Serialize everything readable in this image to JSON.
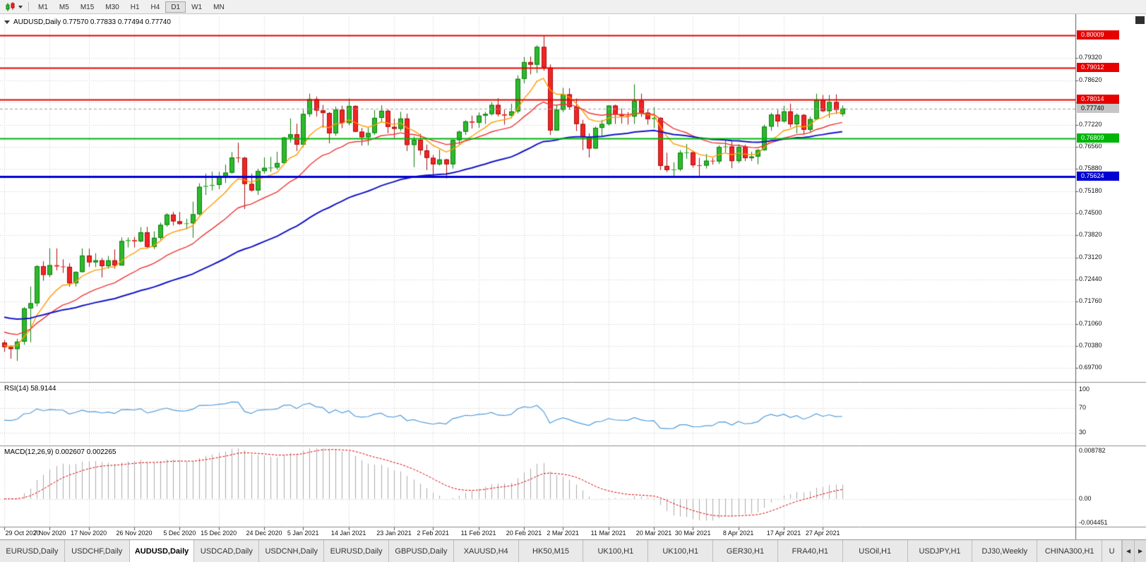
{
  "toolbar": {
    "timeframes": [
      "M1",
      "M5",
      "M15",
      "M30",
      "H1",
      "H4",
      "D1",
      "W1",
      "MN"
    ],
    "active_timeframe": "D1"
  },
  "chart": {
    "symbol": "AUDUSD",
    "period": "Daily",
    "title": "AUDUSD,Daily 0.77570 0.77833 0.77494 0.77740",
    "price_labels": [
      "0.79320",
      "0.78620",
      "0.77920",
      "0.77220",
      "0.76560",
      "0.75880",
      "0.75180",
      "0.74500",
      "0.73820",
      "0.73120",
      "0.72440",
      "0.71760",
      "0.71060",
      "0.70380",
      "0.69700"
    ],
    "levels": [
      {
        "name": "resistance-1",
        "label": "0.80009",
        "value": 0.80009,
        "color": "#e60000",
        "width": 2
      },
      {
        "name": "resistance-2",
        "label": "0.79012",
        "value": 0.79012,
        "color": "#e60000",
        "width": 2
      },
      {
        "name": "resistance-3",
        "label": "0.78014",
        "value": 0.78014,
        "color": "#e60000",
        "width": 2
      },
      {
        "name": "support-green",
        "label": "0.76809",
        "value": 0.76809,
        "color": "#00b40a",
        "width": 2
      },
      {
        "name": "support-blue",
        "label": "0.75624",
        "value": 0.75624,
        "color": "#0000d2",
        "width": 3
      }
    ],
    "current_price": {
      "label": "0.77740",
      "value": 0.7774,
      "tag_bg": "#c6c6c6",
      "tag_text": "#000000",
      "line_color": "#a0a0a0"
    }
  },
  "rsi": {
    "label": "RSI(14) 58.9144",
    "value": 58.9144,
    "color": "#4f9bdb",
    "axis_labels": [
      {
        "text": "100",
        "value": 100
      },
      {
        "text": "70",
        "value": 70
      },
      {
        "text": "30",
        "value": 30
      }
    ]
  },
  "macd": {
    "label": "MACD(12,26,9) 0.002607 0.002265",
    "value": 0.002607,
    "signal": 0.002265,
    "histogram_color": "#ababab",
    "signal_color": "#e00000",
    "axis_labels": [
      {
        "text": "0.008782",
        "value": 0.008782
      },
      {
        "text": "0.00",
        "value": 0
      },
      {
        "text": "-0.004451",
        "value": -0.004451
      }
    ]
  },
  "time_axis": {
    "labels": [
      {
        "text": "29 Oct 2020",
        "index": 0
      },
      {
        "text": "7 Nov 2020",
        "index": 7
      },
      {
        "text": "17 Nov 2020",
        "index": 13
      },
      {
        "text": "26 Nov 2020",
        "index": 20
      },
      {
        "text": "5 Dec 2020",
        "index": 27
      },
      {
        "text": "15 Dec 2020",
        "index": 33
      },
      {
        "text": "24 Dec 2020",
        "index": 40
      },
      {
        "text": "5 Jan 2021",
        "index": 46
      },
      {
        "text": "14 Jan 2021",
        "index": 53
      },
      {
        "text": "23 Jan 2021",
        "index": 60
      },
      {
        "text": "2 Feb 2021",
        "index": 66
      },
      {
        "text": "11 Feb 2021",
        "index": 73
      },
      {
        "text": "20 Feb 2021",
        "index": 80
      },
      {
        "text": "2 Mar 2021",
        "index": 86
      },
      {
        "text": "11 Mar 2021",
        "index": 93
      },
      {
        "text": "20 Mar 2021",
        "index": 100
      },
      {
        "text": "30 Mar 2021",
        "index": 106
      },
      {
        "text": "8 Apr 2021",
        "index": 113
      },
      {
        "text": "17 Apr 2021",
        "index": 120
      },
      {
        "text": "27 Apr 2021",
        "index": 126
      }
    ]
  },
  "tabs": {
    "items": [
      "EURUSD,Daily",
      "USDCHF,Daily",
      "AUDUSD,Daily",
      "USDCAD,Daily",
      "USDCNH,Daily",
      "EURUSD,Daily",
      "GBPUSD,Daily",
      "XAUUSD,H4",
      "HK50,M15",
      "UK100,H1",
      "UK100,H1",
      "GER30,H1",
      "FRA40,H1",
      "USOil,H1",
      "USDJPY,H1",
      "DJ30,Weekly",
      "CHINA300,H1",
      "U"
    ],
    "active_index": 2,
    "scroll_left": "◀",
    "scroll_right": "▶"
  },
  "chart_data": {
    "type": "candlestick",
    "symbol": "AUDUSD",
    "timeframe": "Daily",
    "ohlc_current": {
      "open": 0.7757,
      "high": 0.77833,
      "low": 0.77494,
      "close": 0.7774
    },
    "x_range": [
      "29 Oct 2020",
      "30 Apr 2021"
    ],
    "y_range": [
      0.6928,
      0.8058
    ],
    "colors": {
      "up": "#2db92d",
      "down": "#f32424",
      "up_border": "#0b7d0b",
      "down_border": "#a80d0d"
    },
    "ma": {
      "fast": {
        "period": 8,
        "color": "#ff9b00",
        "seed": 0.704
      },
      "medium": {
        "period": 20,
        "color": "#f03434",
        "seed": 0.7085
      },
      "slow": {
        "period": 55,
        "color": "#1414c8",
        "seed": 0.713
      }
    },
    "rsi_period": 14,
    "macd_params": [
      12,
      26,
      9
    ],
    "candles": [
      [
        0.7048,
        0.7056,
        0.7019,
        0.7034
      ],
      [
        0.7034,
        0.704,
        0.6998,
        0.7028
      ],
      [
        0.7028,
        0.706,
        0.6991,
        0.7051
      ],
      [
        0.7051,
        0.7158,
        0.7041,
        0.7154
      ],
      [
        0.7154,
        0.7222,
        0.7049,
        0.717
      ],
      [
        0.717,
        0.7288,
        0.716,
        0.7285
      ],
      [
        0.7285,
        0.73,
        0.724,
        0.7258
      ],
      [
        0.7258,
        0.734,
        0.7251,
        0.7288
      ],
      [
        0.7288,
        0.734,
        0.7272,
        0.7284
      ],
      [
        0.7284,
        0.7306,
        0.7264,
        0.7283
      ],
      [
        0.7283,
        0.7294,
        0.7221,
        0.7232
      ],
      [
        0.7232,
        0.7269,
        0.7222,
        0.7267
      ],
      [
        0.7267,
        0.734,
        0.7265,
        0.7318
      ],
      [
        0.7318,
        0.7339,
        0.7283,
        0.7297
      ],
      [
        0.7297,
        0.7325,
        0.7282,
        0.7303
      ],
      [
        0.7303,
        0.731,
        0.725,
        0.7285
      ],
      [
        0.7285,
        0.7317,
        0.7277,
        0.7303
      ],
      [
        0.7303,
        0.7337,
        0.7277,
        0.7287
      ],
      [
        0.7287,
        0.7374,
        0.7287,
        0.7363
      ],
      [
        0.7363,
        0.7374,
        0.7343,
        0.7366
      ],
      [
        0.7366,
        0.7376,
        0.7343,
        0.7362
      ],
      [
        0.7362,
        0.7406,
        0.7359,
        0.739
      ],
      [
        0.739,
        0.7407,
        0.7339,
        0.7345
      ],
      [
        0.7345,
        0.7393,
        0.7338,
        0.7373
      ],
      [
        0.7373,
        0.742,
        0.7367,
        0.7413
      ],
      [
        0.7413,
        0.7449,
        0.7407,
        0.7445
      ],
      [
        0.7445,
        0.7453,
        0.7411,
        0.7424
      ],
      [
        0.7424,
        0.7453,
        0.7413,
        0.7416
      ],
      [
        0.7416,
        0.7432,
        0.74,
        0.7418
      ],
      [
        0.7418,
        0.7485,
        0.7373,
        0.7446
      ],
      [
        0.7446,
        0.7542,
        0.7443,
        0.7531
      ],
      [
        0.7531,
        0.7572,
        0.7506,
        0.7534
      ],
      [
        0.7534,
        0.7578,
        0.752,
        0.7537
      ],
      [
        0.7537,
        0.7578,
        0.7523,
        0.7561
      ],
      [
        0.7561,
        0.76,
        0.7543,
        0.7575
      ],
      [
        0.7575,
        0.7639,
        0.7572,
        0.7622
      ],
      [
        0.7622,
        0.7668,
        0.7606,
        0.7621
      ],
      [
        0.7621,
        0.7624,
        0.7462,
        0.754
      ],
      [
        0.754,
        0.7572,
        0.7516,
        0.752
      ],
      [
        0.752,
        0.7587,
        0.7506,
        0.758
      ],
      [
        0.758,
        0.7622,
        0.7572,
        0.759
      ],
      [
        0.759,
        0.7624,
        0.7577,
        0.7591
      ],
      [
        0.7591,
        0.764,
        0.7585,
        0.7605
      ],
      [
        0.7605,
        0.7686,
        0.76,
        0.7684
      ],
      [
        0.7684,
        0.7743,
        0.7669,
        0.7694
      ],
      [
        0.7694,
        0.7727,
        0.7642,
        0.7662
      ],
      [
        0.7662,
        0.777,
        0.7654,
        0.7757
      ],
      [
        0.7757,
        0.782,
        0.7748,
        0.7803
      ],
      [
        0.7803,
        0.7811,
        0.7749,
        0.7768
      ],
      [
        0.7768,
        0.7785,
        0.7714,
        0.776
      ],
      [
        0.776,
        0.7763,
        0.7666,
        0.7697
      ],
      [
        0.7697,
        0.778,
        0.7689,
        0.777
      ],
      [
        0.777,
        0.7783,
        0.7713,
        0.7729
      ],
      [
        0.7729,
        0.7805,
        0.7722,
        0.7782
      ],
      [
        0.7782,
        0.7784,
        0.7701,
        0.7702
      ],
      [
        0.7702,
        0.7714,
        0.7659,
        0.7685
      ],
      [
        0.7685,
        0.7714,
        0.766,
        0.7698
      ],
      [
        0.7698,
        0.7769,
        0.7692,
        0.7745
      ],
      [
        0.7745,
        0.7784,
        0.7731,
        0.7767
      ],
      [
        0.7767,
        0.7772,
        0.7697,
        0.7717
      ],
      [
        0.7717,
        0.7743,
        0.7682,
        0.7711
      ],
      [
        0.7711,
        0.7764,
        0.7704,
        0.7743
      ],
      [
        0.7743,
        0.7758,
        0.7642,
        0.7661
      ],
      [
        0.7661,
        0.7687,
        0.7592,
        0.7677
      ],
      [
        0.7677,
        0.7696,
        0.763,
        0.7644
      ],
      [
        0.7644,
        0.7662,
        0.7583,
        0.7621
      ],
      [
        0.7621,
        0.763,
        0.7564,
        0.7601
      ],
      [
        0.7601,
        0.7646,
        0.7597,
        0.7616
      ],
      [
        0.7616,
        0.7618,
        0.7557,
        0.7601
      ],
      [
        0.7601,
        0.7678,
        0.7588,
        0.7676
      ],
      [
        0.7676,
        0.7706,
        0.7662,
        0.7702
      ],
      [
        0.7702,
        0.7738,
        0.7692,
        0.7734
      ],
      [
        0.7734,
        0.7752,
        0.7712,
        0.773
      ],
      [
        0.773,
        0.7762,
        0.7714,
        0.7752
      ],
      [
        0.7752,
        0.7764,
        0.7726,
        0.7757
      ],
      [
        0.7757,
        0.7794,
        0.7752,
        0.7785
      ],
      [
        0.7785,
        0.7806,
        0.7749,
        0.7756
      ],
      [
        0.7756,
        0.777,
        0.7724,
        0.7752
      ],
      [
        0.7752,
        0.7789,
        0.7744,
        0.7765
      ],
      [
        0.7765,
        0.7877,
        0.7759,
        0.7866
      ],
      [
        0.7866,
        0.7934,
        0.7852,
        0.7918
      ],
      [
        0.7918,
        0.7935,
        0.788,
        0.791
      ],
      [
        0.791,
        0.797,
        0.7884,
        0.7965
      ],
      [
        0.7965,
        0.8001,
        0.7891,
        0.7901
      ],
      [
        0.7901,
        0.7911,
        0.7692,
        0.7706
      ],
      [
        0.7706,
        0.7785,
        0.7705,
        0.777
      ],
      [
        0.777,
        0.7838,
        0.7763,
        0.7818
      ],
      [
        0.7818,
        0.7837,
        0.777,
        0.7779
      ],
      [
        0.7779,
        0.7805,
        0.7704,
        0.7726
      ],
      [
        0.7726,
        0.7739,
        0.7645,
        0.7685
      ],
      [
        0.7685,
        0.7697,
        0.7622,
        0.765
      ],
      [
        0.765,
        0.7718,
        0.7649,
        0.7714
      ],
      [
        0.7714,
        0.7739,
        0.7688,
        0.7726
      ],
      [
        0.7726,
        0.7784,
        0.7721,
        0.7783
      ],
      [
        0.7783,
        0.7786,
        0.7726,
        0.7756
      ],
      [
        0.7756,
        0.7774,
        0.7727,
        0.7751
      ],
      [
        0.7751,
        0.7763,
        0.7724,
        0.7749
      ],
      [
        0.7749,
        0.7849,
        0.7726,
        0.7798
      ],
      [
        0.7798,
        0.782,
        0.7748,
        0.7761
      ],
      [
        0.7761,
        0.7772,
        0.7724,
        0.7741
      ],
      [
        0.7741,
        0.7778,
        0.7713,
        0.7745
      ],
      [
        0.7745,
        0.7747,
        0.7583,
        0.7596
      ],
      [
        0.7596,
        0.7637,
        0.7577,
        0.7583
      ],
      [
        0.7583,
        0.7607,
        0.7562,
        0.7585
      ],
      [
        0.7585,
        0.7645,
        0.758,
        0.7637
      ],
      [
        0.7637,
        0.7664,
        0.7618,
        0.7638
      ],
      [
        0.7638,
        0.7644,
        0.7591,
        0.7598
      ],
      [
        0.7598,
        0.7621,
        0.7561,
        0.7597
      ],
      [
        0.7597,
        0.7633,
        0.7588,
        0.7612
      ],
      [
        0.7612,
        0.7621,
        0.76,
        0.761
      ],
      [
        0.761,
        0.766,
        0.7602,
        0.7655
      ],
      [
        0.7655,
        0.7677,
        0.7637,
        0.7656
      ],
      [
        0.7656,
        0.7672,
        0.7589,
        0.7611
      ],
      [
        0.7611,
        0.7663,
        0.7605,
        0.7655
      ],
      [
        0.7655,
        0.7662,
        0.7611,
        0.762
      ],
      [
        0.762,
        0.764,
        0.7611,
        0.7625
      ],
      [
        0.7625,
        0.7648,
        0.7601,
        0.7645
      ],
      [
        0.7645,
        0.7724,
        0.7643,
        0.7718
      ],
      [
        0.7718,
        0.7761,
        0.7705,
        0.7755
      ],
      [
        0.7755,
        0.777,
        0.7717,
        0.7734
      ],
      [
        0.7734,
        0.7783,
        0.773,
        0.7765
      ],
      [
        0.7765,
        0.7789,
        0.7715,
        0.7725
      ],
      [
        0.7725,
        0.7759,
        0.7697,
        0.7754
      ],
      [
        0.7754,
        0.7757,
        0.7693,
        0.7708
      ],
      [
        0.7708,
        0.7749,
        0.7699,
        0.7741
      ],
      [
        0.7741,
        0.782,
        0.7738,
        0.7801
      ],
      [
        0.7801,
        0.7816,
        0.7763,
        0.7766
      ],
      [
        0.7766,
        0.7816,
        0.7745,
        0.7794
      ],
      [
        0.7794,
        0.7818,
        0.7757,
        0.777
      ],
      [
        0.7757,
        0.77833,
        0.77494,
        0.7774
      ]
    ]
  }
}
